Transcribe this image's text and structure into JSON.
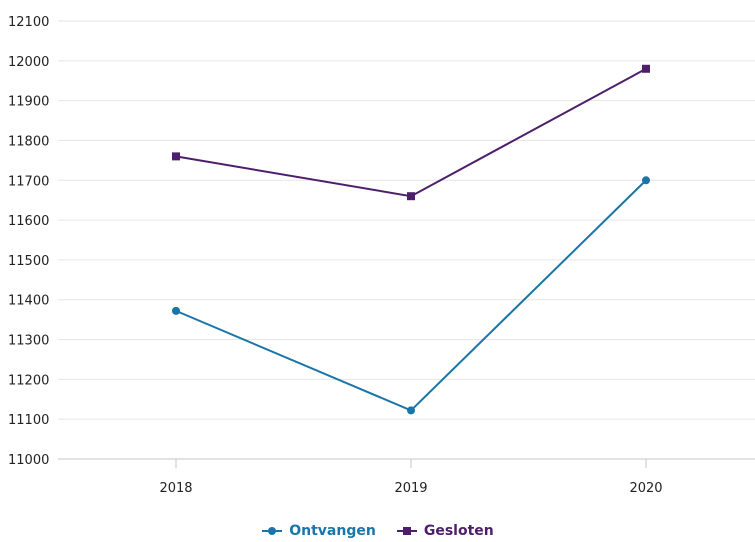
{
  "chart_data": {
    "type": "line",
    "x": [
      "2018",
      "2019",
      "2020"
    ],
    "ylim": [
      11000,
      12100
    ],
    "yticks": [
      11000,
      11100,
      11200,
      11300,
      11400,
      11500,
      11600,
      11700,
      11800,
      11900,
      12000,
      12100
    ],
    "grid": true,
    "legend_position": "bottom-center",
    "series": [
      {
        "name": "Ontvangen",
        "values": [
          11372,
          11122,
          11700
        ],
        "color": "#1a75a8",
        "marker": "circle"
      },
      {
        "name": "Gesloten",
        "values": [
          11760,
          11660,
          11980
        ],
        "color": "#4d1f6b",
        "marker": "square"
      }
    ]
  }
}
